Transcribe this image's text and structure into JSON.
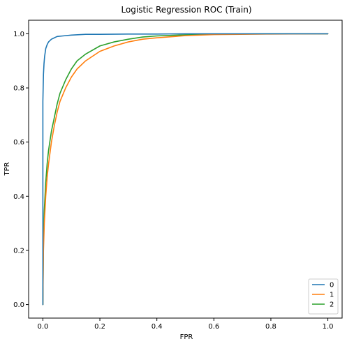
{
  "chart_data": {
    "type": "line",
    "title": "Logistic Regression ROC (Train)",
    "xlabel": "FPR",
    "ylabel": "TPR",
    "xlim": [
      -0.05,
      1.05
    ],
    "ylim": [
      -0.05,
      1.05
    ],
    "xticks": [
      "0.0",
      "0.2",
      "0.4",
      "0.6",
      "0.8",
      "1.0"
    ],
    "yticks": [
      "0.0",
      "0.2",
      "0.4",
      "0.6",
      "0.8",
      "1.0"
    ],
    "grid": false,
    "legend_position": "bottom-right",
    "series": [
      {
        "name": "0",
        "color": "#1f77b4",
        "x": [
          0.0,
          0.0,
          0.002,
          0.004,
          0.006,
          0.008,
          0.01,
          0.015,
          0.02,
          0.03,
          0.04,
          0.05,
          0.07,
          0.1,
          0.15,
          0.2,
          0.3,
          0.4,
          0.5,
          0.7,
          1.0
        ],
        "y": [
          0.0,
          0.75,
          0.85,
          0.89,
          0.915,
          0.93,
          0.945,
          0.96,
          0.97,
          0.98,
          0.985,
          0.99,
          0.992,
          0.995,
          0.998,
          0.998,
          0.999,
          0.999,
          1.0,
          1.0,
          1.0
        ]
      },
      {
        "name": "1",
        "color": "#ff7f0e",
        "x": [
          0.0,
          0.002,
          0.005,
          0.01,
          0.015,
          0.02,
          0.03,
          0.04,
          0.05,
          0.06,
          0.08,
          0.1,
          0.12,
          0.15,
          0.2,
          0.25,
          0.3,
          0.35,
          0.4,
          0.5,
          0.6,
          0.8,
          1.0
        ],
        "y": [
          0.0,
          0.2,
          0.3,
          0.4,
          0.47,
          0.52,
          0.6,
          0.66,
          0.71,
          0.75,
          0.8,
          0.84,
          0.87,
          0.9,
          0.935,
          0.955,
          0.97,
          0.98,
          0.985,
          0.993,
          0.997,
          0.999,
          1.0
        ]
      },
      {
        "name": "2",
        "color": "#2ca02c",
        "x": [
          0.0,
          0.002,
          0.005,
          0.01,
          0.015,
          0.02,
          0.03,
          0.04,
          0.05,
          0.06,
          0.08,
          0.1,
          0.12,
          0.15,
          0.2,
          0.25,
          0.3,
          0.35,
          0.4,
          0.5,
          0.6,
          0.8,
          1.0
        ],
        "y": [
          0.0,
          0.25,
          0.35,
          0.45,
          0.52,
          0.57,
          0.64,
          0.69,
          0.74,
          0.78,
          0.83,
          0.87,
          0.9,
          0.925,
          0.955,
          0.97,
          0.98,
          0.988,
          0.992,
          0.996,
          0.998,
          1.0,
          1.0
        ]
      }
    ]
  }
}
